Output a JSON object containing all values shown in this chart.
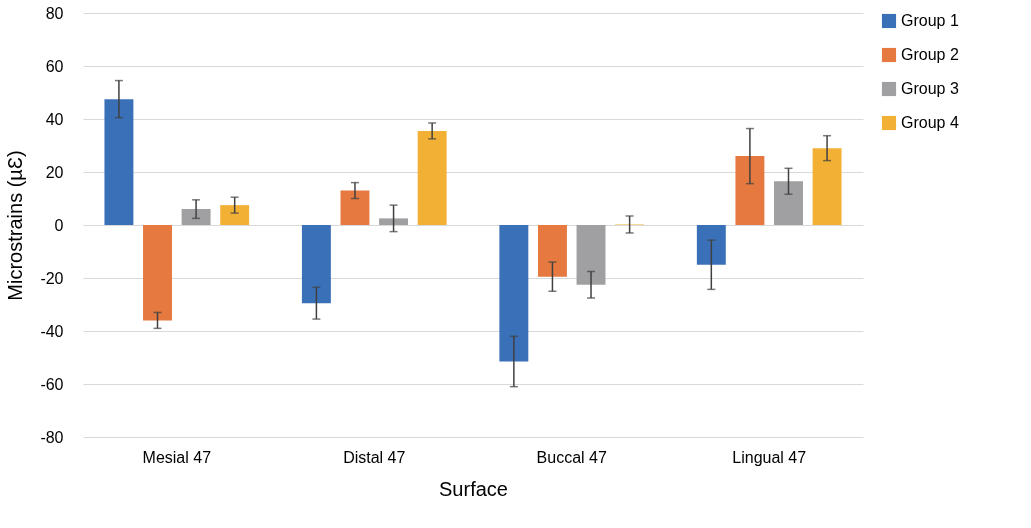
{
  "chart_data": {
    "type": "bar",
    "xlabel": "Surface",
    "ylabel": "Microstrains (µƐ)",
    "categories": [
      "Mesial 47",
      "Distal 47",
      "Buccal 47",
      "Lingual 47"
    ],
    "series": [
      {
        "name": "Group 1",
        "color": "#3a70b8",
        "values": [
          47.5,
          -29.5,
          -51.5,
          -15
        ],
        "errors": [
          7,
          6,
          9.5,
          9.3
        ]
      },
      {
        "name": "Group 2",
        "color": "#e5793f",
        "values": [
          -36,
          13,
          -19.5,
          26
        ],
        "errors": [
          3,
          3,
          5.5,
          10.4
        ]
      },
      {
        "name": "Group 3",
        "color": "#a0a0a2",
        "values": [
          6,
          2.5,
          -22.5,
          16.5
        ],
        "errors": [
          3.5,
          5,
          5,
          4.9
        ]
      },
      {
        "name": "Group 4",
        "color": "#f2b134",
        "values": [
          7.5,
          35.5,
          0.2,
          29
        ],
        "errors": [
          3,
          3,
          3.2,
          4.7
        ]
      }
    ],
    "ylim": [
      -80,
      80
    ],
    "yticks": [
      -80,
      -60,
      -40,
      -20,
      0,
      20,
      40,
      60,
      80
    ],
    "grid": "y",
    "legend": "right"
  }
}
